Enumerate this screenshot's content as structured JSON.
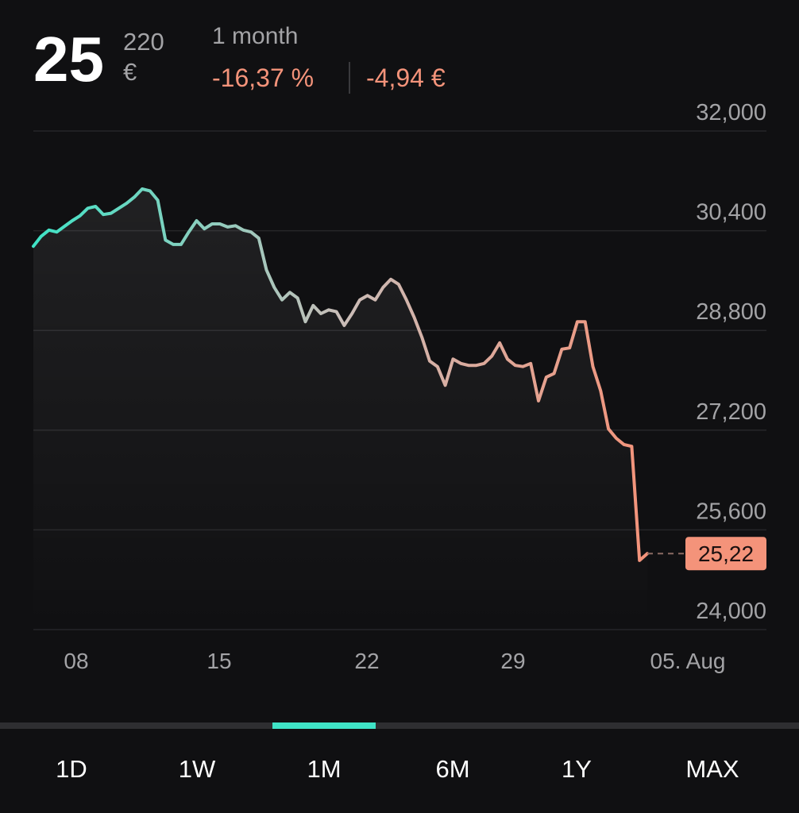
{
  "header": {
    "price_main": "25",
    "price_fraction": "220",
    "currency": "€",
    "period": "1 month",
    "change_percent": "-16,37 %",
    "change_amount": "-4,94 €"
  },
  "chart_data": {
    "type": "line",
    "xtick_labels": [
      "08",
      "15",
      "22",
      "29",
      "05. Aug"
    ],
    "values": [
      30.15,
      30.31,
      30.41,
      30.38,
      30.47,
      30.56,
      30.64,
      30.76,
      30.79,
      30.66,
      30.68,
      30.76,
      30.84,
      30.94,
      31.07,
      31.04,
      30.89,
      30.25,
      30.18,
      30.18,
      30.38,
      30.56,
      30.43,
      30.51,
      30.51,
      30.46,
      30.48,
      30.41,
      30.38,
      30.28,
      29.77,
      29.49,
      29.29,
      29.41,
      29.32,
      28.94,
      29.2,
      29.07,
      29.13,
      29.1,
      28.88,
      29.07,
      29.29,
      29.36,
      29.29,
      29.49,
      29.62,
      29.54,
      29.29,
      29.01,
      28.69,
      28.31,
      28.22,
      27.92,
      28.34,
      28.27,
      28.24,
      28.24,
      28.27,
      28.39,
      28.6,
      28.34,
      28.24,
      28.22,
      28.27,
      27.67,
      28.05,
      28.11,
      28.5,
      28.52,
      28.94,
      28.94,
      28.22,
      27.83,
      27.22,
      27.07,
      26.97,
      26.94,
      25.11,
      25.22
    ],
    "ylim": [
      24,
      32
    ],
    "yticks": [
      {
        "value": 32,
        "label": "32,000"
      },
      {
        "value": 30.4,
        "label": "30,400"
      },
      {
        "value": 28.8,
        "label": "28,800"
      },
      {
        "value": 27.2,
        "label": "27,200"
      },
      {
        "value": 25.6,
        "label": "25,600"
      },
      {
        "value": 24,
        "label": "24,000"
      }
    ],
    "grid": true,
    "colors": [
      "#3fe3c6",
      "#c9bdb8",
      "#f4937a"
    ],
    "last_price": {
      "value": 25.22,
      "label": "25,22"
    }
  },
  "tabs": [
    "1D",
    "1W",
    "1M",
    "6M",
    "1Y",
    "MAX"
  ],
  "selected_tab": "1M"
}
